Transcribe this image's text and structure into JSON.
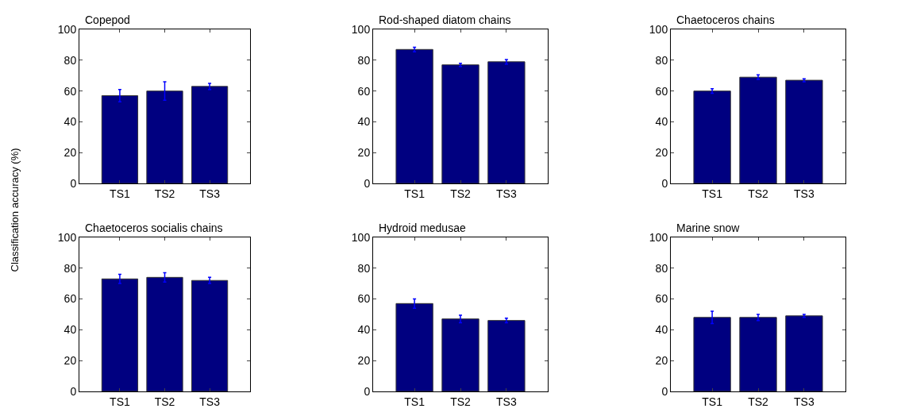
{
  "chart_data": [
    {
      "type": "bar",
      "title": "Copepod",
      "ylabel": "Classification accuracy (%)",
      "categories": [
        "TS1",
        "TS2",
        "TS3"
      ],
      "values": [
        57,
        60,
        63
      ],
      "errors": [
        4,
        6,
        2
      ],
      "color": "#000080",
      "ylim": [
        0,
        100
      ],
      "yticks": [
        0,
        20,
        40,
        60,
        80,
        100
      ]
    },
    {
      "type": "bar",
      "title": "Rod-shaped diatom chains",
      "categories": [
        "TS1",
        "TS2",
        "TS3"
      ],
      "values": [
        87,
        77,
        79
      ],
      "errors": [
        1.5,
        1,
        1.5
      ],
      "color": "#000080",
      "ylim": [
        0,
        100
      ],
      "yticks": [
        0,
        20,
        40,
        60,
        80,
        100
      ]
    },
    {
      "type": "bar",
      "title": "Chaetoceros chains",
      "categories": [
        "TS1",
        "TS2",
        "TS3"
      ],
      "values": [
        60,
        69,
        67
      ],
      "errors": [
        1.5,
        1.5,
        1
      ],
      "color": "#000080",
      "ylim": [
        0,
        100
      ],
      "yticks": [
        0,
        20,
        40,
        60,
        80,
        100
      ]
    },
    {
      "type": "bar",
      "title": "Chaetoceros socialis chains",
      "categories": [
        "TS1",
        "TS2",
        "TS3"
      ],
      "values": [
        73,
        74,
        72
      ],
      "errors": [
        3,
        3,
        2
      ],
      "color": "#000080",
      "ylim": [
        0,
        100
      ],
      "yticks": [
        0,
        20,
        40,
        60,
        80,
        100
      ]
    },
    {
      "type": "bar",
      "title": "Hydroid medusae",
      "categories": [
        "TS1",
        "TS2",
        "TS3"
      ],
      "values": [
        57,
        47,
        46
      ],
      "errors": [
        3,
        2.5,
        1.5
      ],
      "color": "#000080",
      "ylim": [
        0,
        100
      ],
      "yticks": [
        0,
        20,
        40,
        60,
        80,
        100
      ]
    },
    {
      "type": "bar",
      "title": "Marine snow",
      "categories": [
        "TS1",
        "TS2",
        "TS3"
      ],
      "values": [
        48,
        48,
        49
      ],
      "errors": [
        4,
        2,
        1
      ],
      "color": "#000080",
      "ylim": [
        0,
        100
      ],
      "yticks": [
        0,
        20,
        40,
        60,
        80,
        100
      ]
    }
  ]
}
